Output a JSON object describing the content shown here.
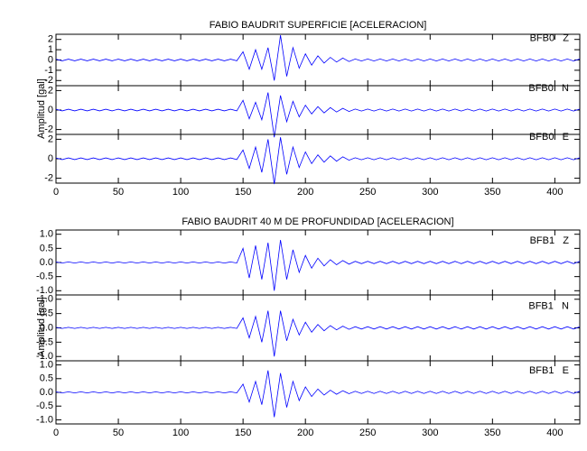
{
  "chart_data": [
    {
      "type": "line",
      "title": "FABIO BAUDRIT SUPERFICIE [ACELERACION]",
      "ylabel": "Amplitud [gal]",
      "color": "#0000ff",
      "xlim": [
        0,
        420
      ],
      "xticks": [
        0,
        50,
        100,
        150,
        200,
        250,
        300,
        350,
        400
      ],
      "x": [
        0,
        5,
        10,
        15,
        20,
        25,
        30,
        35,
        40,
        45,
        50,
        55,
        60,
        65,
        70,
        75,
        80,
        85,
        90,
        95,
        100,
        105,
        110,
        115,
        120,
        125,
        130,
        135,
        140,
        145,
        150,
        155,
        160,
        165,
        170,
        175,
        180,
        185,
        190,
        195,
        200,
        205,
        210,
        215,
        220,
        225,
        230,
        235,
        240,
        245,
        250,
        255,
        260,
        265,
        270,
        275,
        280,
        285,
        290,
        295,
        300,
        305,
        310,
        315,
        320,
        325,
        330,
        335,
        340,
        345,
        350,
        355,
        360,
        365,
        370,
        375,
        380,
        385,
        390,
        395,
        400,
        405,
        410,
        415,
        420
      ],
      "series": [
        {
          "name": "BFB0   Z",
          "ylim": [
            -2.5,
            2.5
          ],
          "yticks": [
            -2,
            -1,
            0,
            1,
            2
          ],
          "values": [
            0.08,
            0.08,
            0.08,
            0.08,
            0.08,
            0.08,
            0.08,
            0.08,
            0.08,
            0.08,
            0.08,
            0.08,
            0.08,
            0.08,
            0.08,
            0.08,
            0.08,
            0.08,
            0.08,
            0.08,
            0.08,
            0.08,
            0.08,
            0.08,
            0.08,
            0.08,
            0.08,
            0.08,
            0.08,
            0.08,
            0.8,
            0.9,
            1.0,
            0.9,
            1.2,
            2.0,
            2.4,
            1.6,
            1.2,
            0.8,
            0.6,
            0.5,
            0.4,
            0.3,
            0.25,
            0.2,
            0.18,
            0.15,
            0.1,
            0.1,
            0.1,
            0.1,
            0.1,
            0.1,
            0.1,
            0.1,
            0.1,
            0.1,
            0.1,
            0.1,
            0.1,
            0.1,
            0.1,
            0.1,
            0.1,
            0.1,
            0.1,
            0.1,
            0.1,
            0.1,
            0.1,
            0.1,
            0.1,
            0.1,
            0.1,
            0.1,
            0.1,
            0.1,
            0.1,
            0.1,
            0.1,
            0.1,
            0.1,
            0.1,
            0.1
          ]
        },
        {
          "name": "BFB0   N",
          "ylim": [
            -2.5,
            2.5
          ],
          "yticks": [
            -2,
            0,
            2
          ],
          "values": [
            0.08,
            0.08,
            0.08,
            0.08,
            0.08,
            0.08,
            0.08,
            0.08,
            0.08,
            0.08,
            0.08,
            0.08,
            0.08,
            0.08,
            0.08,
            0.08,
            0.08,
            0.08,
            0.08,
            0.08,
            0.08,
            0.08,
            0.08,
            0.08,
            0.08,
            0.08,
            0.08,
            0.08,
            0.08,
            0.08,
            1.0,
            0.9,
            0.8,
            1.0,
            1.8,
            2.8,
            1.5,
            1.2,
            0.9,
            0.7,
            0.5,
            0.4,
            0.35,
            0.3,
            0.25,
            0.2,
            0.18,
            0.15,
            0.1,
            0.1,
            0.1,
            0.1,
            0.1,
            0.1,
            0.1,
            0.1,
            0.1,
            0.1,
            0.1,
            0.1,
            0.1,
            0.1,
            0.1,
            0.1,
            0.1,
            0.1,
            0.1,
            0.1,
            0.1,
            0.1,
            0.1,
            0.1,
            0.1,
            0.1,
            0.1,
            0.1,
            0.1,
            0.1,
            0.1,
            0.1,
            0.1,
            0.1,
            0.1,
            0.1,
            0.1
          ]
        },
        {
          "name": "BFB0   E",
          "ylim": [
            -2.5,
            2.5
          ],
          "yticks": [
            -2,
            0,
            2
          ],
          "values": [
            0.08,
            0.08,
            0.08,
            0.08,
            0.08,
            0.08,
            0.08,
            0.08,
            0.08,
            0.08,
            0.08,
            0.08,
            0.08,
            0.08,
            0.08,
            0.08,
            0.08,
            0.08,
            0.08,
            0.08,
            0.08,
            0.08,
            0.08,
            0.08,
            0.08,
            0.08,
            0.08,
            0.08,
            0.08,
            0.08,
            0.9,
            1.0,
            1.2,
            1.4,
            2.0,
            2.6,
            2.2,
            1.6,
            1.2,
            0.9,
            0.7,
            0.5,
            0.4,
            0.35,
            0.3,
            0.25,
            0.2,
            0.15,
            0.1,
            0.1,
            0.1,
            0.1,
            0.1,
            0.1,
            0.1,
            0.1,
            0.1,
            0.1,
            0.1,
            0.1,
            0.1,
            0.1,
            0.1,
            0.1,
            0.1,
            0.1,
            0.1,
            0.1,
            0.1,
            0.1,
            0.1,
            0.1,
            0.1,
            0.1,
            0.1,
            0.1,
            0.1,
            0.1,
            0.1,
            0.1,
            0.1,
            0.1,
            0.1,
            0.1,
            0.1
          ]
        }
      ]
    },
    {
      "type": "line",
      "title": "FABIO BAUDRIT 40 M DE PROFUNDIDAD [ACELERACION]",
      "ylabel": "Amplitud [gal]",
      "color": "#0000ff",
      "xlim": [
        0,
        420
      ],
      "xticks": [
        0,
        50,
        100,
        150,
        200,
        250,
        300,
        350,
        400
      ],
      "x": [
        0,
        5,
        10,
        15,
        20,
        25,
        30,
        35,
        40,
        45,
        50,
        55,
        60,
        65,
        70,
        75,
        80,
        85,
        90,
        95,
        100,
        105,
        110,
        115,
        120,
        125,
        130,
        135,
        140,
        145,
        150,
        155,
        160,
        165,
        170,
        175,
        180,
        185,
        190,
        195,
        200,
        205,
        210,
        215,
        220,
        225,
        230,
        235,
        240,
        245,
        250,
        255,
        260,
        265,
        270,
        275,
        280,
        285,
        290,
        295,
        300,
        305,
        310,
        315,
        320,
        325,
        330,
        335,
        340,
        345,
        350,
        355,
        360,
        365,
        370,
        375,
        380,
        385,
        390,
        395,
        400,
        405,
        410,
        415,
        420
      ],
      "series": [
        {
          "name": "BFB1   Z",
          "ylim": [
            -1.15,
            1.15
          ],
          "yticks": [
            {
              "value": -1,
              "label": "-1.0"
            },
            {
              "value": -0.5,
              "label": "-0.5"
            },
            {
              "value": 0,
              "label": "0.0"
            },
            {
              "value": 0.5,
              "label": "0.5"
            },
            {
              "value": 1,
              "label": "1.0"
            }
          ],
          "values": [
            0.02,
            0.02,
            0.02,
            0.02,
            0.02,
            0.02,
            0.02,
            0.02,
            0.02,
            0.02,
            0.02,
            0.02,
            0.02,
            0.02,
            0.02,
            0.02,
            0.02,
            0.02,
            0.02,
            0.02,
            0.02,
            0.02,
            0.02,
            0.02,
            0.02,
            0.02,
            0.02,
            0.02,
            0.02,
            0.02,
            0.5,
            0.55,
            0.6,
            0.6,
            0.7,
            1.0,
            0.8,
            0.6,
            0.45,
            0.35,
            0.25,
            0.2,
            0.15,
            0.12,
            0.1,
            0.08,
            0.07,
            0.06,
            0.04,
            0.04,
            0.04,
            0.04,
            0.04,
            0.04,
            0.04,
            0.04,
            0.04,
            0.04,
            0.04,
            0.04,
            0.04,
            0.04,
            0.04,
            0.04,
            0.04,
            0.04,
            0.04,
            0.04,
            0.04,
            0.04,
            0.04,
            0.04,
            0.04,
            0.04,
            0.04,
            0.04,
            0.04,
            0.04,
            0.04,
            0.04,
            0.04,
            0.04,
            0.04,
            0.04,
            0.04
          ]
        },
        {
          "name": "BFB1   N",
          "ylim": [
            -1.15,
            1.15
          ],
          "yticks": [
            {
              "value": -1,
              "label": "-1.0"
            },
            {
              "value": -0.5,
              "label": "-0.5"
            },
            {
              "value": 0,
              "label": "0.0"
            },
            {
              "value": 0.5,
              "label": "0.5"
            },
            {
              "value": 1,
              "label": "1.0"
            }
          ],
          "values": [
            0.02,
            0.02,
            0.02,
            0.02,
            0.02,
            0.02,
            0.02,
            0.02,
            0.02,
            0.02,
            0.02,
            0.02,
            0.02,
            0.02,
            0.02,
            0.02,
            0.02,
            0.02,
            0.02,
            0.02,
            0.02,
            0.02,
            0.02,
            0.02,
            0.02,
            0.02,
            0.02,
            0.02,
            0.02,
            0.02,
            0.35,
            0.35,
            0.4,
            0.5,
            0.6,
            1.0,
            0.6,
            0.45,
            0.3,
            0.25,
            0.2,
            0.15,
            0.12,
            0.1,
            0.08,
            0.07,
            0.06,
            0.05,
            0.04,
            0.04,
            0.04,
            0.04,
            0.04,
            0.04,
            0.04,
            0.04,
            0.04,
            0.04,
            0.04,
            0.04,
            0.04,
            0.04,
            0.04,
            0.04,
            0.04,
            0.04,
            0.04,
            0.04,
            0.04,
            0.04,
            0.04,
            0.04,
            0.04,
            0.04,
            0.04,
            0.04,
            0.04,
            0.04,
            0.04,
            0.04,
            0.04,
            0.04,
            0.04,
            0.04,
            0.04
          ]
        },
        {
          "name": "BFB1   E",
          "ylim": [
            -1.15,
            1.15
          ],
          "yticks": [
            {
              "value": -1,
              "label": "-1.0"
            },
            {
              "value": -0.5,
              "label": "-0.5"
            },
            {
              "value": 0,
              "label": "0.0"
            },
            {
              "value": 0.5,
              "label": "0.5"
            },
            {
              "value": 1,
              "label": "1.0"
            }
          ],
          "values": [
            0.02,
            0.02,
            0.02,
            0.02,
            0.02,
            0.02,
            0.02,
            0.02,
            0.02,
            0.02,
            0.02,
            0.02,
            0.02,
            0.02,
            0.02,
            0.02,
            0.02,
            0.02,
            0.02,
            0.02,
            0.02,
            0.02,
            0.02,
            0.02,
            0.02,
            0.02,
            0.02,
            0.02,
            0.02,
            0.02,
            0.3,
            0.35,
            0.4,
            0.45,
            0.8,
            0.9,
            0.7,
            0.55,
            0.4,
            0.3,
            0.2,
            0.15,
            0.12,
            0.1,
            0.08,
            0.07,
            0.06,
            0.05,
            0.04,
            0.04,
            0.04,
            0.04,
            0.04,
            0.04,
            0.04,
            0.04,
            0.04,
            0.04,
            0.04,
            0.04,
            0.04,
            0.04,
            0.04,
            0.04,
            0.04,
            0.04,
            0.04,
            0.04,
            0.04,
            0.04,
            0.04,
            0.04,
            0.04,
            0.04,
            0.04,
            0.04,
            0.04,
            0.04,
            0.04,
            0.04,
            0.04,
            0.04,
            0.04,
            0.04,
            0.04
          ]
        }
      ]
    }
  ]
}
